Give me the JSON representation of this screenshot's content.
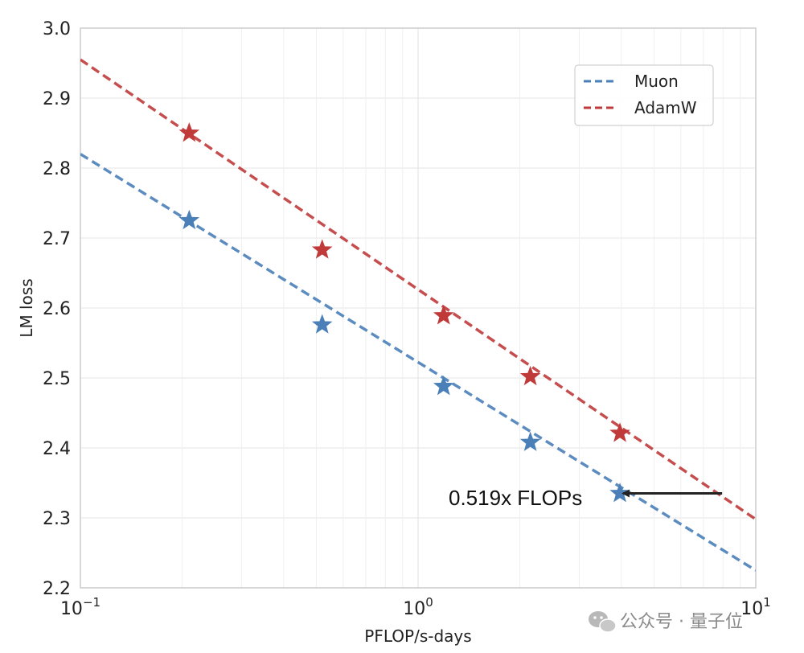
{
  "chart_data": {
    "type": "line",
    "xscale": "log",
    "xlabel": "PFLOP/s-days",
    "ylabel": "LM loss",
    "xlim": [
      0.1,
      10
    ],
    "ylim": [
      2.2,
      3.0
    ],
    "x_ticks": [
      {
        "value": 0.1,
        "base": "10",
        "exp": "−1"
      },
      {
        "value": 1,
        "base": "10",
        "exp": "0"
      },
      {
        "value": 10,
        "base": "10",
        "exp": "1"
      }
    ],
    "y_ticks": [
      "2.2",
      "2.3",
      "2.4",
      "2.5",
      "2.6",
      "2.7",
      "2.8",
      "2.9",
      "3.0"
    ],
    "grid": true,
    "legend": {
      "position": "top-right"
    },
    "series": [
      {
        "name": "Muon",
        "color": "#4a7fb8",
        "fit": [
          {
            "x": 0.1,
            "y": 2.82
          },
          {
            "x": 10,
            "y": 2.225
          }
        ],
        "points": [
          {
            "x": 0.21,
            "y": 2.725
          },
          {
            "x": 0.52,
            "y": 2.576
          },
          {
            "x": 1.19,
            "y": 2.488
          },
          {
            "x": 2.15,
            "y": 2.408
          },
          {
            "x": 3.96,
            "y": 2.335
          }
        ]
      },
      {
        "name": "AdamW",
        "color": "#c03a3a",
        "fit": [
          {
            "x": 0.1,
            "y": 2.955
          },
          {
            "x": 10,
            "y": 2.298
          }
        ],
        "points": [
          {
            "x": 0.21,
            "y": 2.85
          },
          {
            "x": 0.52,
            "y": 2.683
          },
          {
            "x": 1.19,
            "y": 2.589
          },
          {
            "x": 2.15,
            "y": 2.502
          },
          {
            "x": 3.96,
            "y": 2.421
          }
        ]
      }
    ],
    "annotation": {
      "text": "0.519x FLOPs",
      "arrow_from": {
        "x": 7.95,
        "y": 2.335
      },
      "arrow_to": {
        "x": 4.05,
        "y": 2.335
      }
    }
  },
  "watermark": {
    "icon": "wechat-icon",
    "text": "公众号 · 量子位"
  }
}
